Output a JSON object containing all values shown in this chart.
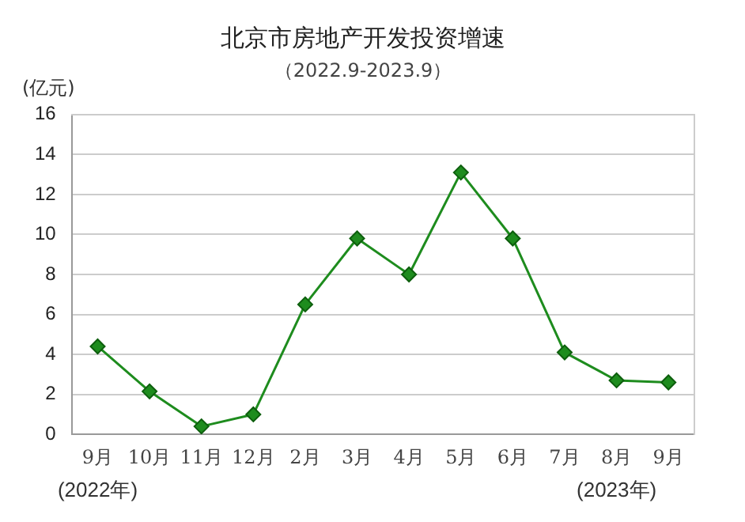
{
  "chart_data": {
    "type": "line",
    "title": "北京市房地产开发投资增速",
    "subtitle": "（2022.9-2023.9）",
    "ylabel": "(亿元)",
    "categories": [
      "9月",
      "10月",
      "11月",
      "12月",
      "2月",
      "3月",
      "4月",
      "5月",
      "6月",
      "7月",
      "8月",
      "9月"
    ],
    "series": [
      {
        "color": "#1e8c1e",
        "values": [
          4.4,
          2.15,
          0.4,
          1.0,
          6.5,
          9.8,
          8.0,
          13.1,
          9.8,
          4.1,
          2.7,
          2.6
        ]
      }
    ],
    "ylim": [
      0,
      16
    ],
    "yticks": [
      0,
      2,
      4,
      6,
      8,
      10,
      12,
      14,
      16
    ],
    "grid": "y",
    "marker": "diamond",
    "line_style": "solid",
    "legend": false,
    "annotations": [
      "(2022年)",
      "(2023年)"
    ]
  }
}
